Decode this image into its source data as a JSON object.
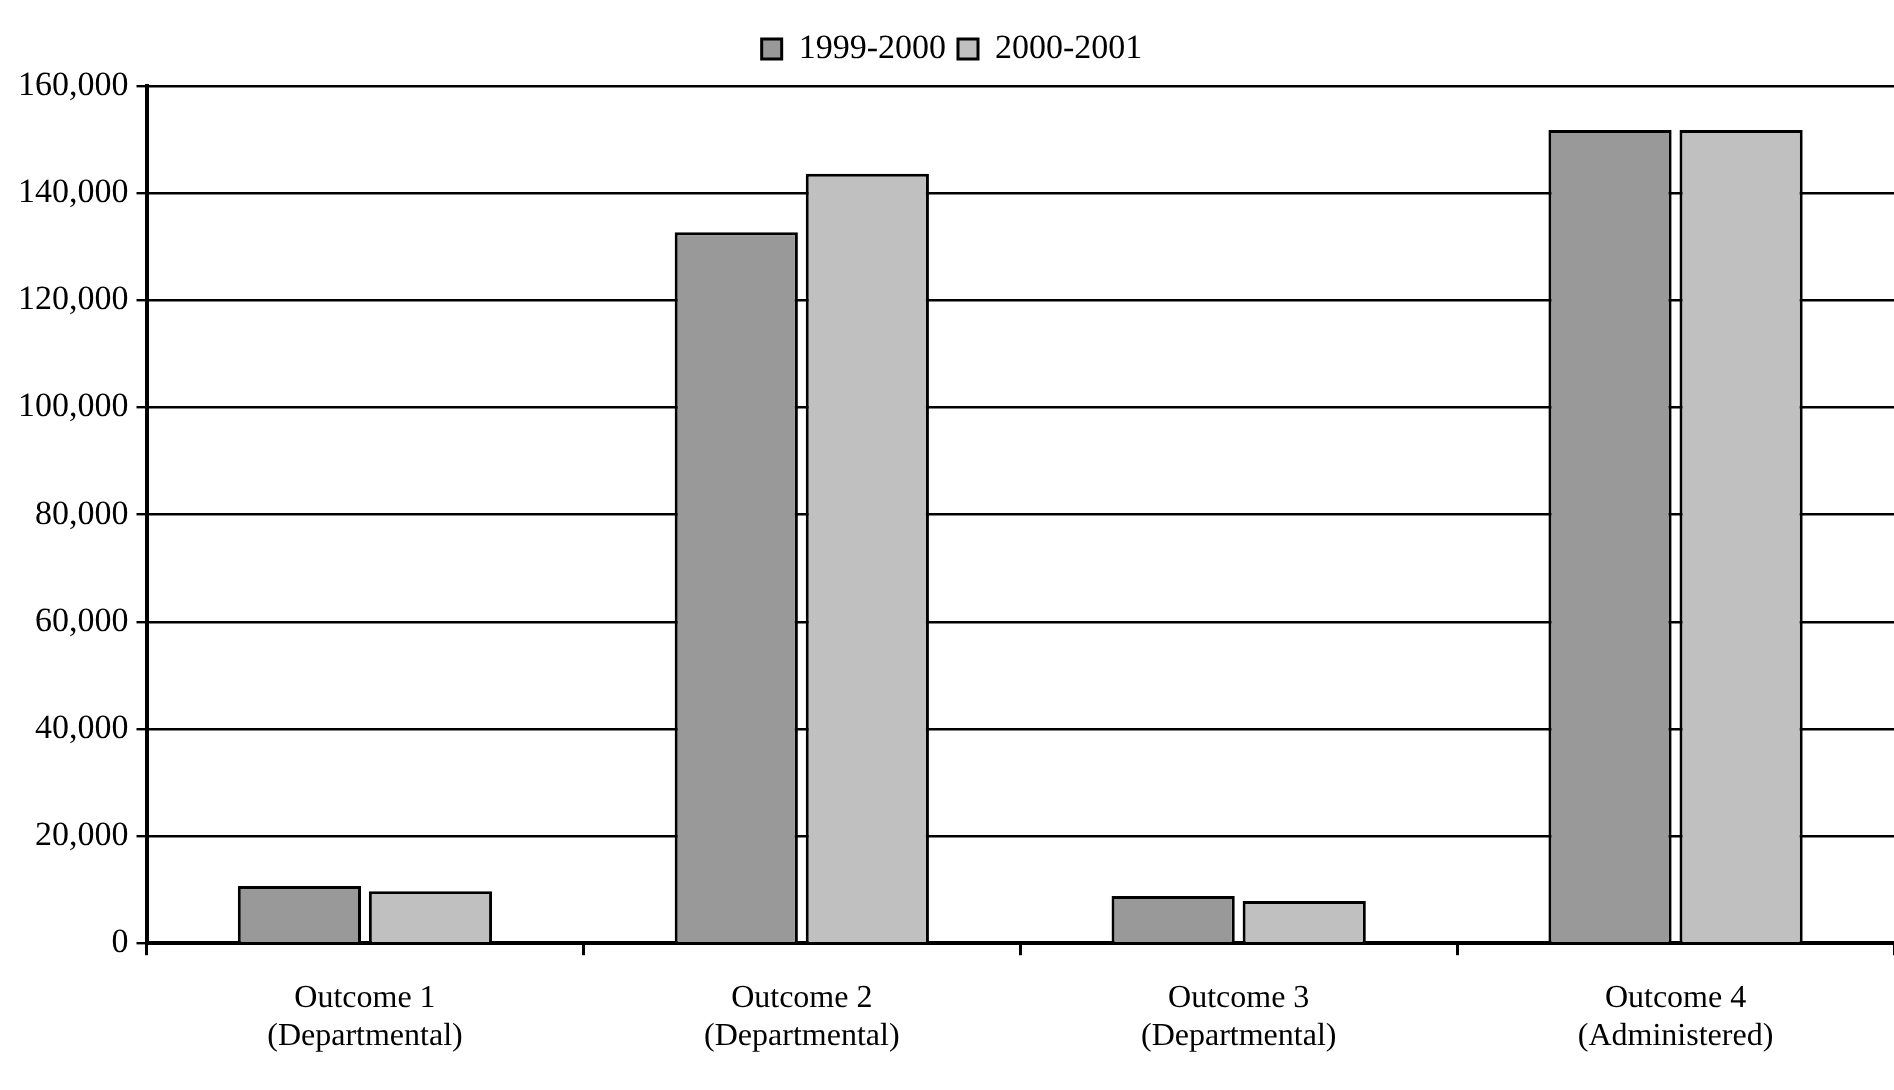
{
  "chart_data": {
    "type": "bar",
    "categories": [
      "Outcome 1\n(Departmental)",
      "Outcome 2\n(Departmental)",
      "Outcome 3\n(Departmental)",
      "Outcome 4\n(Administered)"
    ],
    "series": [
      {
        "name": "1999-2000",
        "color": "#999999",
        "values": [
          10700,
          132700,
          8800,
          151800
        ]
      },
      {
        "name": "2000-2001",
        "color": "#c0c0c0",
        "values": [
          9700,
          143600,
          7900,
          151800
        ]
      }
    ],
    "ylim": [
      0,
      160000
    ],
    "yticks": [
      {
        "value": 0,
        "label": "0"
      },
      {
        "value": 20000,
        "label": "20,000"
      },
      {
        "value": 40000,
        "label": "40,000"
      },
      {
        "value": 60000,
        "label": "60,000"
      },
      {
        "value": 80000,
        "label": "80,000"
      },
      {
        "value": 100000,
        "label": "100,000"
      },
      {
        "value": 120000,
        "label": "120,000"
      },
      {
        "value": 140000,
        "label": "140,000"
      },
      {
        "value": 160000,
        "label": "160,000"
      }
    ],
    "grid": "y",
    "legend": "top"
  }
}
